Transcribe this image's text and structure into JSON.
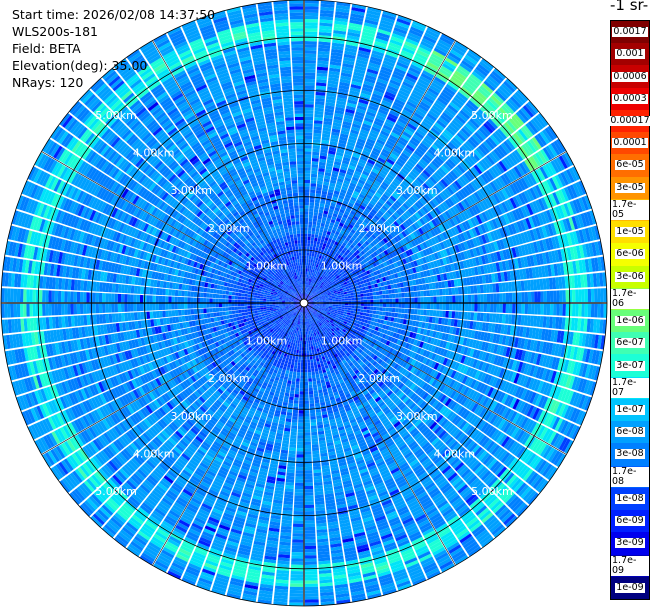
{
  "header": {
    "start_time": "Start time: 2026/02/08 14:37:50",
    "instrument": "WLS200s-181",
    "field": "Field: BETA",
    "elevation": "Elevation(deg): 35.00",
    "nrays": "NRays: 120"
  },
  "colorbar": {
    "title": "-1 sr-",
    "labels": [
      "0.0017",
      "0.001",
      "0.0006",
      "0.0003",
      "0.00017",
      "0.0001",
      "6e-05",
      "3e-05",
      "1.7e-05",
      "1e-05",
      "6e-06",
      "3e-06",
      "1.7e-06",
      "1e-06",
      "6e-07",
      "3e-07",
      "1.7e-07",
      "1e-07",
      "6e-08",
      "3e-08",
      "1.7e-08",
      "1e-08",
      "6e-09",
      "3e-09",
      "1.7e-09",
      "1e-09"
    ],
    "colors": [
      "#7f0000",
      "#a30000",
      "#c80000",
      "#ee0000",
      "#ff2200",
      "#ff4800",
      "#ff6e00",
      "#ff9400",
      "#ffb900",
      "#ffdf00",
      "#f5ff00",
      "#c8ff00",
      "#96ff40",
      "#68ff7a",
      "#3fffb3",
      "#1cffd6",
      "#00e4f8",
      "#00c4ff",
      "#00a0ff",
      "#0080ff",
      "#0060ff",
      "#0040ff",
      "#0020ff",
      "#0000ee",
      "#0000b8",
      "#000080"
    ]
  },
  "chart_data": {
    "type": "heatmap",
    "description_units": "km",
    "n_rays": 120,
    "elevation_deg": 35.0,
    "max_range_km": 5.7,
    "range_rings_km": [
      1,
      2,
      3,
      4,
      5
    ],
    "ring_labels": [
      "1.00km",
      "2.00km",
      "3.00km",
      "4.00km",
      "5.00km"
    ],
    "ring_label_quadrants": [
      "NW",
      "NE",
      "SW",
      "SE"
    ],
    "bright_band_range_km": [
      4.9,
      5.35
    ],
    "dominant_levels": [
      "1e-08",
      "6e-08",
      "1.7e-07"
    ],
    "grid": true
  }
}
